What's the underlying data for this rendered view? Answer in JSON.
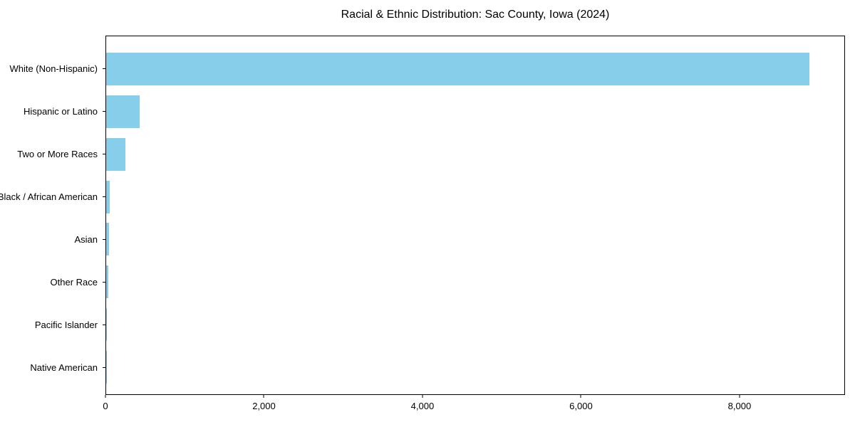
{
  "chart_data": {
    "type": "bar",
    "orientation": "horizontal",
    "title": "Racial & Ethnic Distribution: Sac County, Iowa (2024)",
    "categories": [
      "White (Non-Hispanic)",
      "Hispanic or Latino",
      "Two or More Races",
      "Black / African American",
      "Asian",
      "Other Race",
      "Pacific Islander",
      "Native American"
    ],
    "values": [
      8887,
      420,
      245,
      45,
      35,
      27,
      6,
      2
    ],
    "xlabel": "",
    "ylabel": "",
    "xlim": [
      0,
      9331
    ],
    "xticks": [
      0,
      2000,
      4000,
      6000,
      8000
    ],
    "xtick_labels": [
      "0",
      "2,000",
      "4,000",
      "6,000",
      "8,000"
    ],
    "grid": false,
    "legend": false,
    "bar_color": "#87CEEB",
    "axis_color": "#000000",
    "background_color": "#FFFFFF"
  }
}
